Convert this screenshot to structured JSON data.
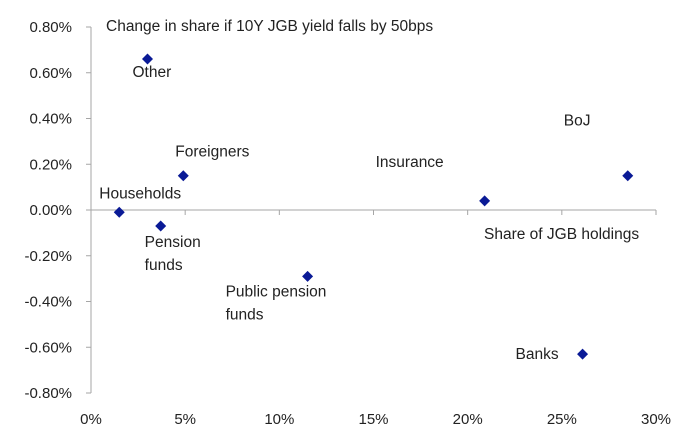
{
  "chart_data": {
    "type": "scatter",
    "title": "",
    "xlabel": "Share of JGB holdings",
    "ylabel": "Change in share if 10Y JGB yield falls by 50bps",
    "xlim": [
      0,
      30
    ],
    "ylim": [
      -0.8,
      0.8
    ],
    "x_unit": "%",
    "y_unit": "%",
    "x_ticks": [
      "0%",
      "5%",
      "10%",
      "15%",
      "20%",
      "25%",
      "30%"
    ],
    "y_ticks": [
      "0.80%",
      "0.60%",
      "0.40%",
      "0.20%",
      "0.00%",
      "-0.20%",
      "-0.40%",
      "-0.60%",
      "-0.80%"
    ],
    "grid": false,
    "marker_color": "#0a1a96",
    "points": [
      {
        "label": "Other",
        "x": 3.0,
        "y": 0.66
      },
      {
        "label": "Foreigners",
        "x": 4.9,
        "y": 0.15
      },
      {
        "label": "Households",
        "x": 1.5,
        "y": -0.01
      },
      {
        "label": "Pension funds",
        "x": 3.7,
        "y": -0.07
      },
      {
        "label": "Public pension funds",
        "x": 11.5,
        "y": -0.29
      },
      {
        "label": "Insurance",
        "x": 20.9,
        "y": 0.04
      },
      {
        "label": "BoJ",
        "x": 28.5,
        "y": 0.15
      },
      {
        "label": "Banks",
        "x": 26.1,
        "y": -0.63
      }
    ]
  }
}
